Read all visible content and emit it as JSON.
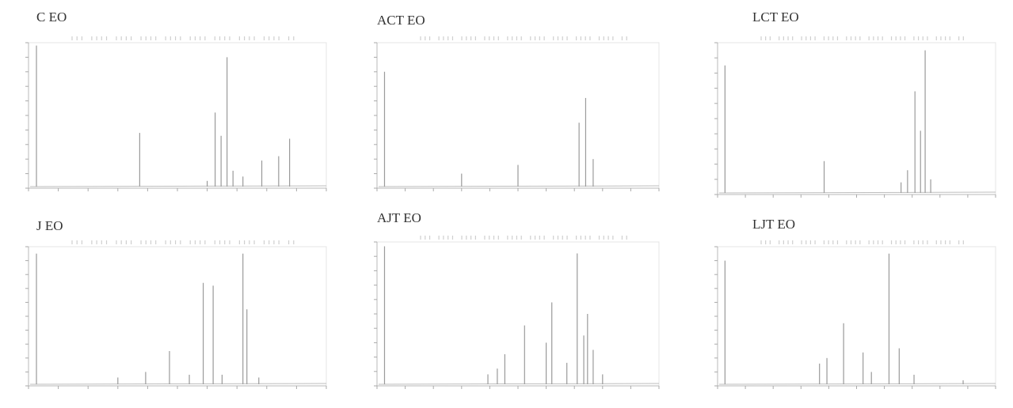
{
  "figure": {
    "panels": [
      {
        "id": "c-eo",
        "label": "C EO",
        "chart_data": {
          "type": "line",
          "xlim": [
            0,
            30
          ],
          "ylim": [
            0,
            1
          ],
          "grid": false,
          "peaks": [
            {
              "x": 0.8,
              "y": 0.98
            },
            {
              "x": 11.2,
              "y": 0.38
            },
            {
              "x": 18.0,
              "y": 0.05
            },
            {
              "x": 18.8,
              "y": 0.52
            },
            {
              "x": 19.4,
              "y": 0.36
            },
            {
              "x": 20.0,
              "y": 0.9
            },
            {
              "x": 20.6,
              "y": 0.12
            },
            {
              "x": 21.6,
              "y": 0.08
            },
            {
              "x": 23.5,
              "y": 0.19
            },
            {
              "x": 25.2,
              "y": 0.22
            },
            {
              "x": 26.3,
              "y": 0.34
            }
          ]
        }
      },
      {
        "id": "act-eo",
        "label": "ACT EO",
        "chart_data": {
          "type": "line",
          "xlim": [
            0,
            30
          ],
          "ylim": [
            0,
            1
          ],
          "grid": false,
          "peaks": [
            {
              "x": 0.8,
              "y": 0.8
            },
            {
              "x": 9.0,
              "y": 0.1
            },
            {
              "x": 15.0,
              "y": 0.16
            },
            {
              "x": 21.5,
              "y": 0.45
            },
            {
              "x": 22.2,
              "y": 0.62
            },
            {
              "x": 23.0,
              "y": 0.2
            }
          ]
        }
      },
      {
        "id": "lct-eo",
        "label": "LCT EO",
        "chart_data": {
          "type": "line",
          "xlim": [
            0,
            30
          ],
          "ylim": [
            0,
            1
          ],
          "grid": false,
          "peaks": [
            {
              "x": 0.8,
              "y": 0.85
            },
            {
              "x": 11.5,
              "y": 0.22
            },
            {
              "x": 19.8,
              "y": 0.08
            },
            {
              "x": 20.5,
              "y": 0.16
            },
            {
              "x": 21.3,
              "y": 0.68
            },
            {
              "x": 21.9,
              "y": 0.42
            },
            {
              "x": 22.4,
              "y": 0.95
            },
            {
              "x": 23.0,
              "y": 0.1
            }
          ]
        }
      },
      {
        "id": "j-eo",
        "label": "J EO",
        "chart_data": {
          "type": "line",
          "xlim": [
            0,
            30
          ],
          "ylim": [
            0,
            1
          ],
          "grid": false,
          "peaks": [
            {
              "x": 0.8,
              "y": 0.95
            },
            {
              "x": 9.0,
              "y": 0.06
            },
            {
              "x": 11.8,
              "y": 0.1
            },
            {
              "x": 14.2,
              "y": 0.25
            },
            {
              "x": 16.2,
              "y": 0.08
            },
            {
              "x": 17.6,
              "y": 0.74
            },
            {
              "x": 18.6,
              "y": 0.72
            },
            {
              "x": 19.5,
              "y": 0.08
            },
            {
              "x": 21.6,
              "y": 0.95
            },
            {
              "x": 22.0,
              "y": 0.55
            },
            {
              "x": 23.2,
              "y": 0.06
            }
          ]
        }
      },
      {
        "id": "ajt-eo",
        "label": "AJT EO",
        "chart_data": {
          "type": "line",
          "xlim": [
            0,
            30
          ],
          "ylim": [
            0,
            1
          ],
          "grid": false,
          "peaks": [
            {
              "x": 0.8,
              "y": 0.97
            },
            {
              "x": 11.8,
              "y": 0.08
            },
            {
              "x": 12.8,
              "y": 0.12
            },
            {
              "x": 13.6,
              "y": 0.22
            },
            {
              "x": 15.7,
              "y": 0.42
            },
            {
              "x": 18.0,
              "y": 0.3
            },
            {
              "x": 18.6,
              "y": 0.58
            },
            {
              "x": 20.2,
              "y": 0.16
            },
            {
              "x": 21.3,
              "y": 0.92
            },
            {
              "x": 22.0,
              "y": 0.35
            },
            {
              "x": 22.4,
              "y": 0.5
            },
            {
              "x": 23.0,
              "y": 0.25
            },
            {
              "x": 24.0,
              "y": 0.08
            }
          ]
        }
      },
      {
        "id": "ljt-eo",
        "label": "LJT EO",
        "chart_data": {
          "type": "line",
          "xlim": [
            0,
            30
          ],
          "ylim": [
            0,
            1
          ],
          "grid": false,
          "peaks": [
            {
              "x": 0.8,
              "y": 0.9
            },
            {
              "x": 11.0,
              "y": 0.16
            },
            {
              "x": 11.8,
              "y": 0.2
            },
            {
              "x": 13.6,
              "y": 0.45
            },
            {
              "x": 15.7,
              "y": 0.24
            },
            {
              "x": 16.6,
              "y": 0.1
            },
            {
              "x": 18.5,
              "y": 0.95
            },
            {
              "x": 19.6,
              "y": 0.27
            },
            {
              "x": 21.2,
              "y": 0.08
            },
            {
              "x": 26.5,
              "y": 0.04
            }
          ]
        }
      }
    ]
  }
}
